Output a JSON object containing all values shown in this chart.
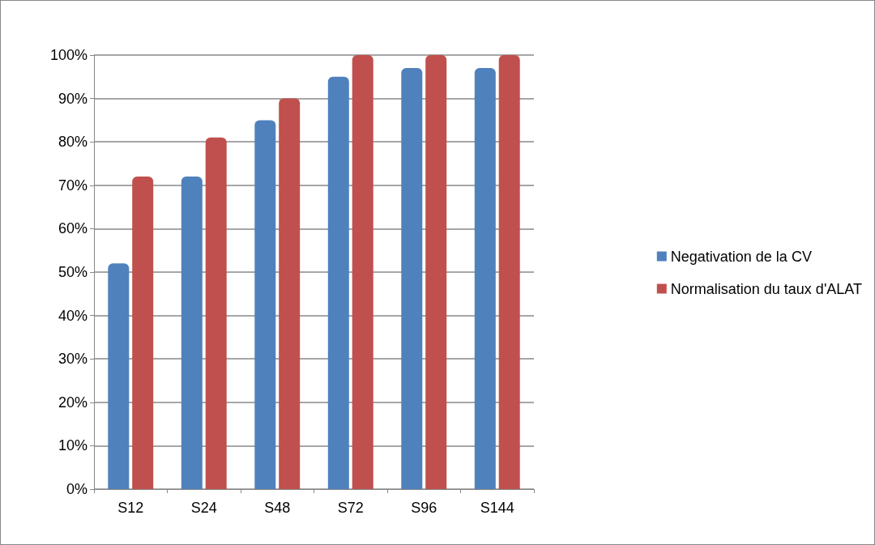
{
  "chart_data": {
    "type": "bar",
    "categories": [
      "S12",
      "S24",
      "S48",
      "S72",
      "S96",
      "S144"
    ],
    "series": [
      {
        "name": "Negativation de la CV",
        "color": "#4f81bd",
        "values": [
          52,
          72,
          85,
          95,
          97,
          97
        ]
      },
      {
        "name": "Normalisation du taux d'ALAT",
        "color": "#c0504d",
        "values": [
          72,
          81,
          90,
          100,
          100,
          100
        ]
      }
    ],
    "ylim": [
      0,
      100
    ],
    "yticks": [
      {
        "value": 0,
        "label": "0%"
      },
      {
        "value": 10,
        "label": "10%"
      },
      {
        "value": 20,
        "label": "20%"
      },
      {
        "value": 30,
        "label": "30%"
      },
      {
        "value": 40,
        "label": "40%"
      },
      {
        "value": 50,
        "label": "50%"
      },
      {
        "value": 60,
        "label": "60%"
      },
      {
        "value": 70,
        "label": "70%"
      },
      {
        "value": 80,
        "label": "80%"
      },
      {
        "value": 90,
        "label": "90%"
      },
      {
        "value": 100,
        "label": "100%"
      }
    ],
    "grid": "y",
    "legend": "right"
  }
}
